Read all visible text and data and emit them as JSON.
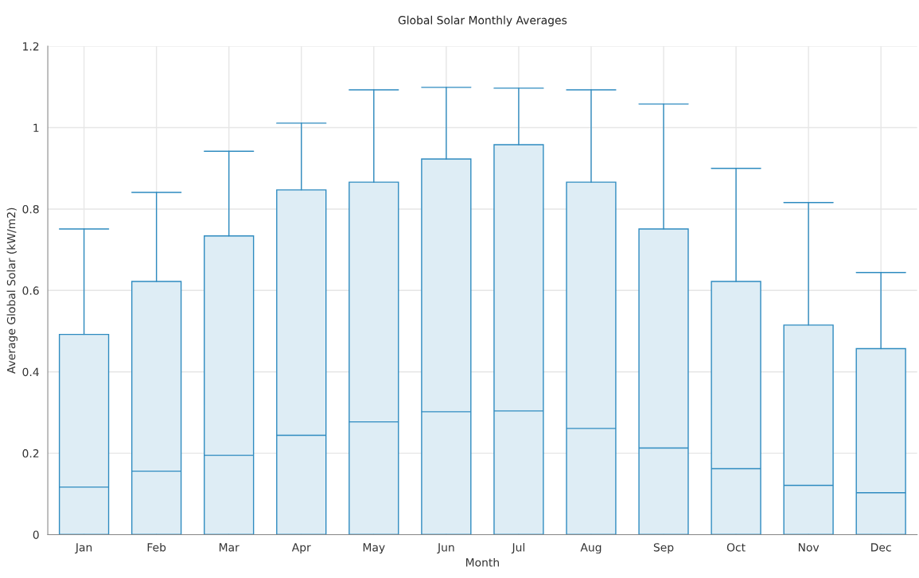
{
  "chart_data": {
    "type": "box",
    "title": "Global Solar Monthly Averages",
    "xlabel": "Month",
    "ylabel": "Average Global Solar (kW/m2)",
    "categories": [
      "Jan",
      "Feb",
      "Mar",
      "Apr",
      "May",
      "Jun",
      "Jul",
      "Aug",
      "Sep",
      "Oct",
      "Nov",
      "Dec"
    ],
    "color": "#2e8bc0",
    "boxes": [
      {
        "low": 0,
        "q1": 0,
        "median": 0.117,
        "q3": 0.492,
        "high": 0.751
      },
      {
        "low": 0,
        "q1": 0,
        "median": 0.156,
        "q3": 0.622,
        "high": 0.841
      },
      {
        "low": 0,
        "q1": 0,
        "median": 0.195,
        "q3": 0.734,
        "high": 0.942
      },
      {
        "low": 0,
        "q1": 0,
        "median": 0.244,
        "q3": 0.847,
        "high": 1.011
      },
      {
        "low": 0,
        "q1": 0,
        "median": 0.277,
        "q3": 0.866,
        "high": 1.093
      },
      {
        "low": 0,
        "q1": 0,
        "median": 0.302,
        "q3": 0.923,
        "high": 1.099
      },
      {
        "low": 0,
        "q1": 0,
        "median": 0.304,
        "q3": 0.958,
        "high": 1.097
      },
      {
        "low": 0,
        "q1": 0,
        "median": 0.261,
        "q3": 0.866,
        "high": 1.093
      },
      {
        "low": 0,
        "q1": 0,
        "median": 0.213,
        "q3": 0.751,
        "high": 1.058
      },
      {
        "low": 0,
        "q1": 0,
        "median": 0.162,
        "q3": 0.622,
        "high": 0.9
      },
      {
        "low": 0,
        "q1": 0,
        "median": 0.121,
        "q3": 0.515,
        "high": 0.816
      },
      {
        "low": 0,
        "q1": 0,
        "median": 0.103,
        "q3": 0.457,
        "high": 0.644
      }
    ],
    "ylim": [
      0,
      1.2
    ],
    "yticks": [
      0,
      0.2,
      0.4,
      0.6,
      0.8,
      1,
      1.2
    ],
    "grid": true
  }
}
